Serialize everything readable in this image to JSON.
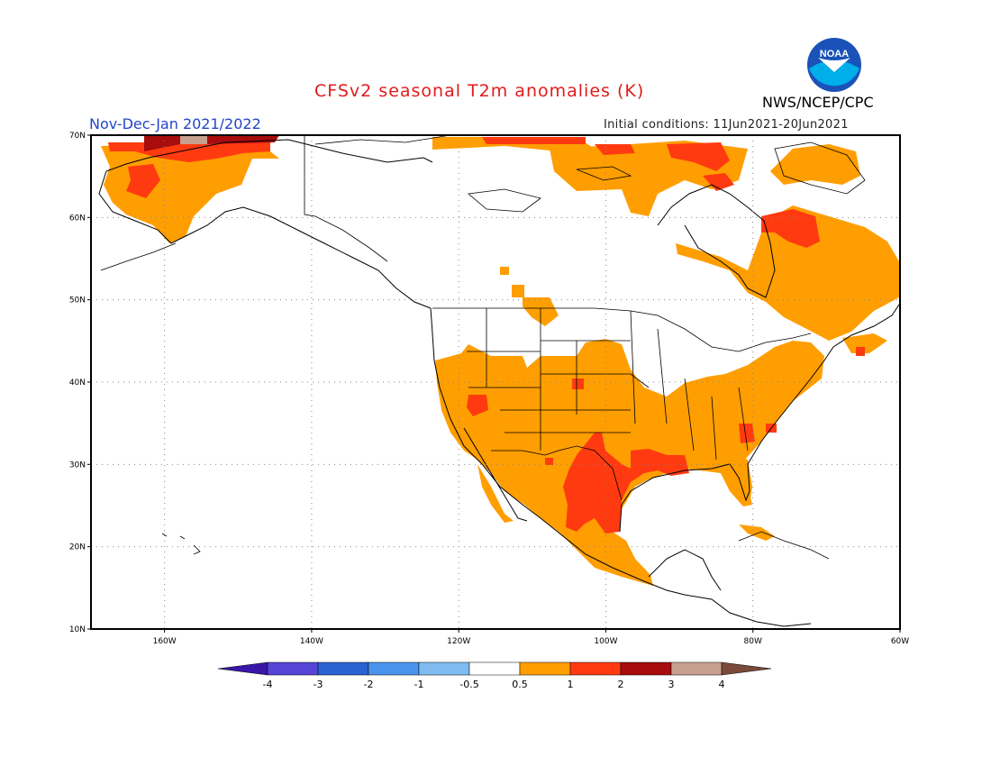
{
  "header": {
    "title": "CFSv2 seasonal T2m anomalies (K)",
    "period": "Nov-Dec-Jan 2021/2022",
    "initial_conditions": "Initial conditions: 11Jun2021-20Jun2021",
    "agency": "NWS/NCEP/CPC",
    "logo_text": "NOAA"
  },
  "map": {
    "lon_range": [
      -170,
      -60
    ],
    "lat_range": [
      10,
      70
    ],
    "lon_ticks": [
      "160W",
      "140W",
      "120W",
      "100W",
      "80W",
      "60W"
    ],
    "lat_ticks": [
      "70N",
      "60N",
      "50N",
      "40N",
      "30N",
      "20N",
      "10N"
    ],
    "gridlines": true
  },
  "legend": {
    "labels": [
      "-4",
      "-3",
      "-2",
      "-1",
      "-0.5",
      "0.5",
      "1",
      "2",
      "3",
      "4"
    ],
    "colors": [
      "#3a16a8",
      "#5544d6",
      "#2a62d2",
      "#4a94ee",
      "#80bcf2",
      "#ffffff",
      "#ff9e00",
      "#ff3a10",
      "#a80c0c",
      "#c8a090",
      "#7a4a3a"
    ]
  }
}
